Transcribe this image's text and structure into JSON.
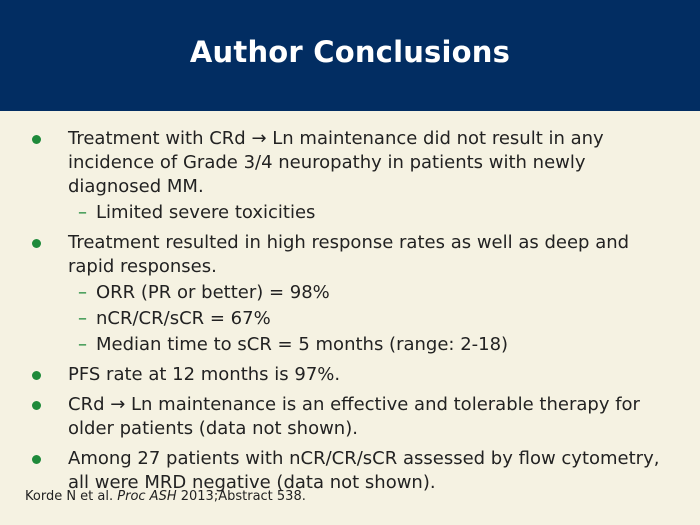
{
  "header": {
    "title": "Author Conclusions"
  },
  "bullets": [
    {
      "text": "Treatment with CRd → Ln maintenance did not result in any incidence of Grade 3/4 neuropathy in patients with newly diagnosed MM.",
      "subs": [
        "Limited severe toxicities"
      ]
    },
    {
      "text": "Treatment resulted in high response rates as well as deep and rapid responses.",
      "subs": [
        "ORR (PR or better) = 98%",
        "nCR/CR/sCR = 67%",
        "Median time to sCR = 5 months (range: 2-18)"
      ]
    },
    {
      "text": "PFS rate at 12 months is 97%.",
      "subs": []
    },
    {
      "text": "CRd → Ln maintenance is an effective and tolerable therapy for older patients (data not shown).",
      "subs": []
    },
    {
      "text": "Among 27 patients with nCR/CR/sCR assessed by flow cytometry, all were MRD negative (data not shown).",
      "subs": []
    }
  ],
  "citation": {
    "authors": "Korde N et al. ",
    "journal": "Proc ASH",
    "rest": " 2013;Abstract 538."
  },
  "colors": {
    "header_bg": "#022d62",
    "page_bg": "#f5f2e2",
    "bullet": "#1e8a3a"
  }
}
